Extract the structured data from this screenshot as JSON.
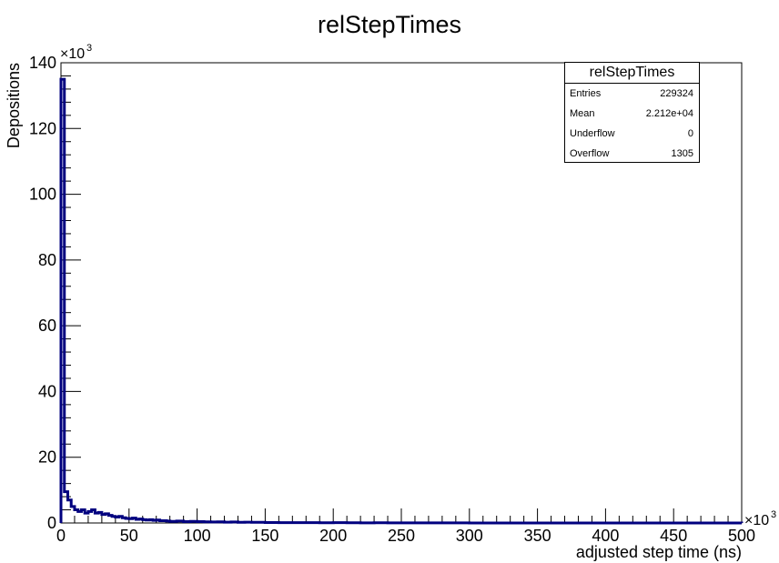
{
  "chart_data": {
    "type": "histogram",
    "title": "relStepTimes",
    "xlabel": "adjusted step time (ns)",
    "ylabel": "Depositions",
    "x_multiplier_label": "×10",
    "x_multiplier_exp": "3",
    "y_multiplier_label": "×10",
    "y_multiplier_exp": "3",
    "xlim": [
      0,
      500
    ],
    "ylim": [
      0,
      140
    ],
    "x_ticks": [
      0,
      50,
      100,
      150,
      200,
      250,
      300,
      350,
      400,
      450,
      500
    ],
    "x_tick_labels": [
      "0",
      "50",
      "100",
      "150",
      "200",
      "250",
      "300",
      "350",
      "400",
      "450",
      "500"
    ],
    "y_ticks": [
      0,
      20,
      40,
      60,
      80,
      100,
      120,
      140
    ],
    "y_tick_labels": [
      "0",
      "20",
      "40",
      "60",
      "80",
      "100",
      "120",
      "140"
    ],
    "line_color": "#00007f",
    "bin_width": 2.5,
    "bins_x": [
      0,
      2.5,
      5,
      7.5,
      10,
      12.5,
      15,
      17.5,
      20,
      22.5,
      25,
      27.5,
      30,
      32.5,
      35,
      37.5,
      40,
      42.5,
      45,
      47.5,
      50,
      52.5,
      55,
      57.5,
      60,
      62.5,
      65,
      67.5,
      70,
      72.5,
      75,
      77.5,
      80,
      85,
      90,
      95,
      100,
      105,
      110,
      115,
      120,
      125,
      130,
      135,
      140,
      150,
      160,
      170,
      180,
      190,
      200,
      210,
      220,
      230,
      240,
      260,
      280,
      300,
      500
    ],
    "bins_y": [
      135,
      9.5,
      7,
      5,
      4,
      3.5,
      4,
      3,
      3.5,
      4,
      3,
      3.2,
      2.6,
      2.8,
      2.3,
      2.0,
      1.8,
      2.0,
      1.6,
      1.4,
      1.3,
      1.5,
      1.1,
      1.2,
      1.0,
      0.9,
      1.0,
      0.8,
      0.9,
      0.7,
      0.7,
      0.6,
      0.5,
      0.6,
      0.4,
      0.5,
      0.4,
      0.35,
      0.3,
      0.35,
      0.25,
      0.3,
      0.2,
      0.25,
      0.2,
      0.15,
      0.12,
      0.1,
      0.12,
      0.08,
      0.1,
      0.06,
      0.05,
      0.08,
      0.04,
      0.03,
      0.02,
      0.01,
      0.01
    ]
  },
  "stats_box": {
    "title": "relStepTimes",
    "rows": [
      {
        "label": "Entries",
        "value": "229324"
      },
      {
        "label": "Mean",
        "value": "2.212e+04"
      },
      {
        "label": "Underflow",
        "value": "0"
      },
      {
        "label": "Overflow",
        "value": "1305"
      }
    ]
  }
}
